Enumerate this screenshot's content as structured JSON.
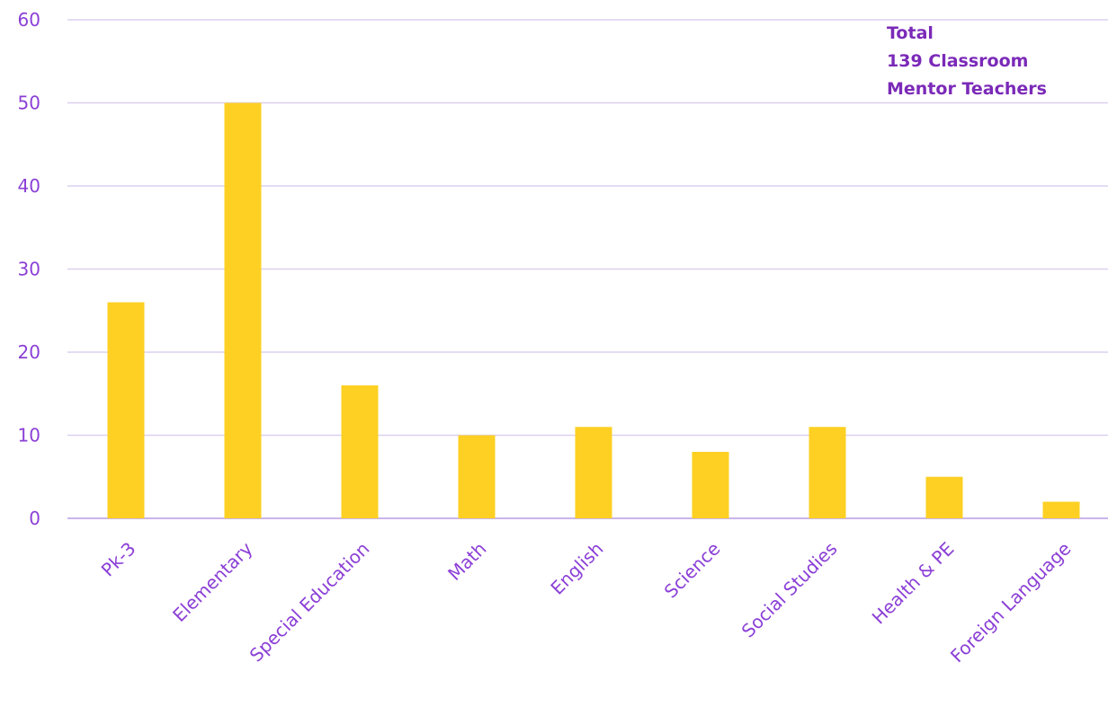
{
  "chart_data": {
    "type": "bar",
    "title": "",
    "xlabel": "",
    "ylabel": "",
    "categories": [
      "Pk-3",
      "Elementary",
      "Special Education",
      "Math",
      "English",
      "Science",
      "Social Studies",
      "Health & PE",
      "Foreign Language"
    ],
    "values": [
      26,
      50,
      16,
      10,
      11,
      8,
      11,
      5,
      2
    ],
    "ylim": [
      0,
      60
    ],
    "yticks": [
      0,
      10,
      20,
      30,
      40,
      50,
      60
    ],
    "grid": true,
    "legend": "none",
    "annotation": {
      "lines": [
        "Total",
        "139 Classroom",
        "Mentor Teachers"
      ]
    },
    "colors": {
      "bar": "#FDD023",
      "axis_text": "#8B3FD6",
      "annotation_text": "#7B2AB8",
      "grid": "#DCD0F0",
      "baseline": "#C9B5EA"
    }
  }
}
